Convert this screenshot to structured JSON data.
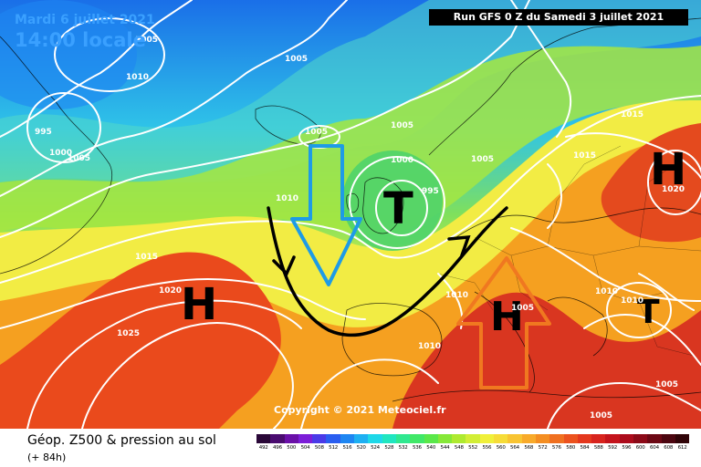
{
  "header": {
    "date": "Mardi 6 juillet 2021",
    "time": "14:00 locale",
    "run": "Run GFS 0 Z du Samedi 3 juillet 2021"
  },
  "copyright": "Copyright © 2021 Meteociel.fr",
  "footer": {
    "title": "Géop. Z500 & pression au sol",
    "subtitle": "(+ 84h)"
  },
  "pressure_centers": {
    "high_atlantic": "H",
    "low_britain": "T",
    "high_scandinavia": "H",
    "high_mediterranean": "H",
    "low_balkans": "T"
  },
  "isobar_labels": {
    "l1005_greenland": "1005",
    "l1010_greenland": "1010",
    "l995": "995",
    "l1000_west": "1000",
    "l1005_west": "1005",
    "l1005_atlantic_north": "1005",
    "l1005_iceland": "1005",
    "l1005_north": "1005",
    "l1000_britain": "1000",
    "l995_britain": "995",
    "l1010_atlantic": "1010",
    "l1015_atlantic": "1015",
    "l1020": "1020",
    "l1025": "1025",
    "l1010_iberia": "1010",
    "l1010_france": "1010",
    "l1005_baltic": "1005",
    "l1015_russia": "1015",
    "l1015_east": "1015",
    "l1020_east": "1020",
    "l1010_italy": "1010",
    "l1010_balkans": "1010",
    "l1005_east": "1005",
    "l1005_south": "1005",
    "l1005_med": "1005"
  },
  "colors": {
    "ocean_cold": "#1a6fe8",
    "mid_green": "#9be63c",
    "yellow": "#f2f043",
    "orange": "#f5a020",
    "red": "#e8301e",
    "blue_arrow": "#1e9be6",
    "orange_arrow": "#f07820"
  },
  "legend": {
    "ticks": [
      "492",
      "496",
      "500",
      "504",
      "508",
      "512",
      "516",
      "520",
      "524",
      "528",
      "532",
      "536",
      "540",
      "544",
      "548",
      "552",
      "556",
      "560",
      "564",
      "568",
      "572",
      "576",
      "580",
      "584",
      "588",
      "592",
      "596",
      "600",
      "604",
      "608",
      "612"
    ],
    "colors": [
      "#2a0838",
      "#4a0c70",
      "#6a10a8",
      "#7c1ed8",
      "#4a3ae8",
      "#2a5ef0",
      "#1e86f2",
      "#1eb0f2",
      "#1ed8e8",
      "#20e6c0",
      "#30e890",
      "#40e868",
      "#5ae84a",
      "#86e838",
      "#aeea30",
      "#d2ee36",
      "#f0f03a",
      "#f6dc38",
      "#f8c432",
      "#f8aa2a",
      "#f48e22",
      "#f07020",
      "#ec521e",
      "#e4381e",
      "#d8241e",
      "#c4141c",
      "#ac0c1c",
      "#8c0a18",
      "#6c0814",
      "#4c0610",
      "#300408"
    ]
  }
}
